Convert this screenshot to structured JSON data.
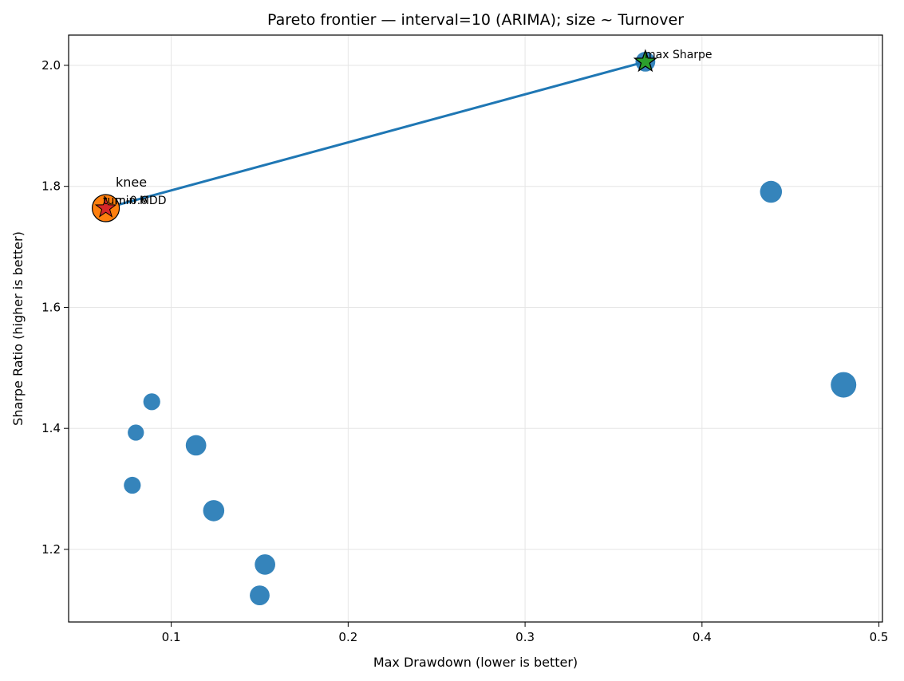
{
  "chart_data": {
    "type": "scatter",
    "title": "Pareto frontier — interval=10 (ARIMA); size ~ Turnover",
    "xlabel": "Max Drawdown (lower is better)",
    "ylabel": "Sharpe Ratio (higher is better)",
    "xlim": [
      0.042,
      0.502
    ],
    "ylim": [
      1.08,
      2.05
    ],
    "xticks": [
      0.1,
      0.2,
      0.3,
      0.4,
      0.5
    ],
    "xtick_labels": [
      "0.1",
      "0.2",
      "0.3",
      "0.4",
      "0.5"
    ],
    "yticks": [
      1.2,
      1.4,
      1.6,
      1.8,
      2.0
    ],
    "ytick_labels": [
      "1.2",
      "1.4",
      "1.6",
      "1.8",
      "2.0"
    ],
    "grid": true,
    "point_color": "#1f77b4",
    "frontier_color": "#1f77b4",
    "points": [
      {
        "x": 0.063,
        "y": 1.764,
        "turnover": 1.0
      },
      {
        "x": 0.368,
        "y": 2.006,
        "turnover": 0.6
      },
      {
        "x": 0.439,
        "y": 1.791,
        "turnover": 0.75
      },
      {
        "x": 0.48,
        "y": 1.472,
        "turnover": 1.0
      },
      {
        "x": 0.089,
        "y": 1.444,
        "turnover": 0.4
      },
      {
        "x": 0.08,
        "y": 1.393,
        "turnover": 0.35
      },
      {
        "x": 0.078,
        "y": 1.306,
        "turnover": 0.4
      },
      {
        "x": 0.114,
        "y": 1.372,
        "turnover": 0.65
      },
      {
        "x": 0.124,
        "y": 1.264,
        "turnover": 0.7
      },
      {
        "x": 0.153,
        "y": 1.175,
        "turnover": 0.65
      },
      {
        "x": 0.15,
        "y": 1.124,
        "turnover": 0.6
      }
    ],
    "frontier": [
      {
        "x": 0.063,
        "y": 1.764
      },
      {
        "x": 0.368,
        "y": 2.006
      }
    ],
    "highlights": {
      "knee": {
        "x": 0.063,
        "y": 1.764,
        "color": "#ff7f0e",
        "label": "knee"
      },
      "min_mdd": {
        "x": 0.063,
        "y": 1.764,
        "color": "#d62728",
        "label": "min MDD",
        "overlap_label": "turn-0.6"
      },
      "max_sharpe": {
        "x": 0.368,
        "y": 2.006,
        "color": "#2ca02c",
        "label": "max Sharpe"
      }
    }
  }
}
